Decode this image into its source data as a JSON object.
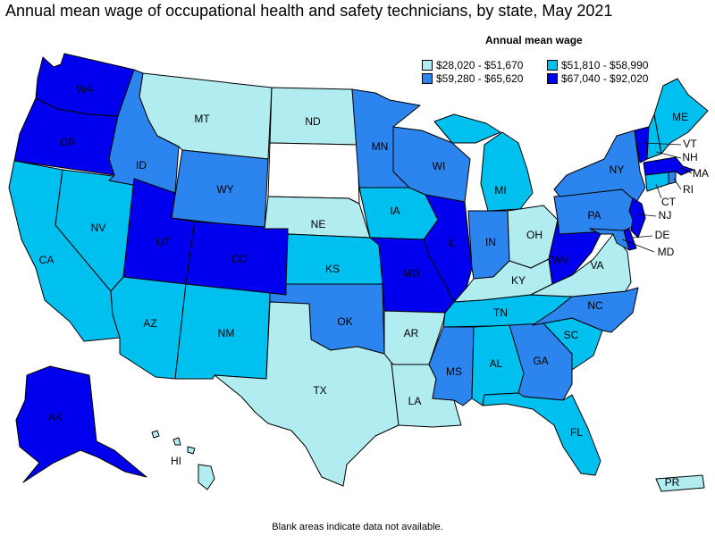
{
  "title": "Annual mean wage of occupational health and safety technicians, by state, May 2021",
  "legend": {
    "title": "Annual mean wage",
    "items": [
      {
        "label": "$28,020 - $51,670",
        "color": "#b0ecf0"
      },
      {
        "label": "$51,810 - $58,990",
        "color": "#00c0f0"
      },
      {
        "label": "$59,280 - $65,620",
        "color": "#2c84ee"
      },
      {
        "label": "$67,040 - $92,020",
        "color": "#0000ee"
      }
    ]
  },
  "footnote": "Blank areas indicate data not available.",
  "blank_color": "#ffffff",
  "states": {
    "WA": 3,
    "OR": 3,
    "CA": 1,
    "NV": 1,
    "ID": 2,
    "MT": 0,
    "WY": 2,
    "UT": 3,
    "CO": 3,
    "AZ": 1,
    "NM": 1,
    "ND": 0,
    "SD": null,
    "NE": 0,
    "KS": 1,
    "OK": 2,
    "TX": 0,
    "MN": 2,
    "IA": 1,
    "MO": 3,
    "AR": 0,
    "LA": 0,
    "WI": 2,
    "IL": 3,
    "MI": 1,
    "IN": 2,
    "OH": 0,
    "KY": 0,
    "TN": 1,
    "MS": 2,
    "AL": 1,
    "GA": 2,
    "FL": 1,
    "SC": 1,
    "NC": 2,
    "VA": 0,
    "WV": 3,
    "PA": 2,
    "NY": 2,
    "ME": 1,
    "VT": 3,
    "NH": 1,
    "MA": 3,
    "RI": 2,
    "CT": 1,
    "NJ": 3,
    "DE": 3,
    "MD": 2,
    "AK": 3,
    "HI": 0,
    "PR": 0
  }
}
